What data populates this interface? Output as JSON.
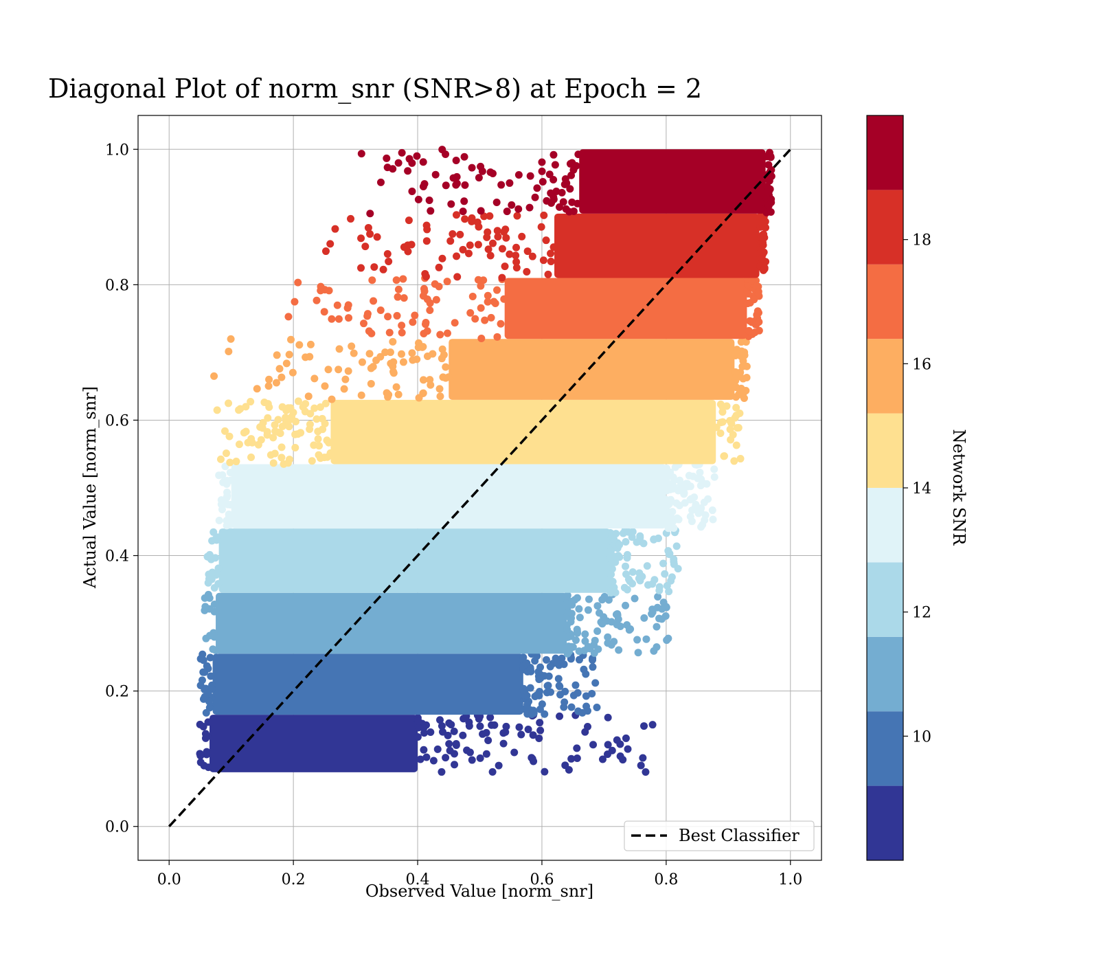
{
  "chart_data": {
    "type": "scatter",
    "title": "Diagonal Plot of norm_snr (SNR>8) at Epoch = 2",
    "xlabel": "Observed Value [norm_snr]",
    "ylabel": "Actual Value [norm_snr]",
    "xlim": [
      -0.05,
      1.05
    ],
    "ylim": [
      -0.05,
      1.05
    ],
    "xticks": [
      0.0,
      0.2,
      0.4,
      0.6,
      0.8,
      1.0
    ],
    "yticks": [
      0.0,
      0.2,
      0.4,
      0.6,
      0.8,
      1.0
    ],
    "xtick_labels": [
      "0.0",
      "0.2",
      "0.4",
      "0.6",
      "0.8",
      "1.0"
    ],
    "ytick_labels": [
      "0.0",
      "0.2",
      "0.4",
      "0.6",
      "0.8",
      "1.0"
    ],
    "grid": true,
    "legend": {
      "position": "bottom-right",
      "entries": [
        {
          "label": "Best Classifier",
          "style": "dashed",
          "color": "#000000"
        }
      ]
    },
    "reference_line": {
      "name": "Best Classifier",
      "x": [
        0.0,
        1.0
      ],
      "y": [
        0.0,
        1.0
      ]
    },
    "colorbar": {
      "label": "Network SNR",
      "range": [
        8,
        20
      ],
      "ticks": [
        10,
        12,
        14,
        16,
        18
      ],
      "tick_labels": [
        "10",
        "12",
        "14",
        "16",
        "18"
      ],
      "colormap": "RdYlBu_r (10 discrete levels)",
      "levels": [
        "#313695",
        "#4575b4",
        "#74add1",
        "#abd9e9",
        "#e0f3f8",
        "#fee090",
        "#fdae61",
        "#f46d43",
        "#d73027",
        "#a50026"
      ]
    },
    "bands": [
      {
        "snr_range": [
          8.0,
          9.2
        ],
        "y_range": [
          0.08,
          0.165
        ],
        "x_core": [
          0.065,
          0.4
        ],
        "x_tail": 0.78
      },
      {
        "snr_range": [
          9.2,
          10.4
        ],
        "y_range": [
          0.165,
          0.255
        ],
        "x_core": [
          0.07,
          0.57
        ],
        "x_tail": 0.69
      },
      {
        "snr_range": [
          10.4,
          11.6
        ],
        "y_range": [
          0.255,
          0.345
        ],
        "x_core": [
          0.075,
          0.64
        ],
        "x_tail": 0.81
      },
      {
        "snr_range": [
          11.6,
          12.8
        ],
        "y_range": [
          0.345,
          0.44
        ],
        "x_core": [
          0.08,
          0.71
        ],
        "x_tail": 0.82
      },
      {
        "snr_range": [
          12.8,
          14.0
        ],
        "y_range": [
          0.44,
          0.535
        ],
        "x_core": [
          0.1,
          0.8
        ],
        "x_tail": 0.88
      },
      {
        "snr_range": [
          14.0,
          15.2
        ],
        "y_range": [
          0.535,
          0.63
        ],
        "x_core": [
          0.26,
          0.88
        ],
        "x_tail": 0.92
      },
      {
        "snr_range": [
          15.2,
          16.4
        ],
        "y_range": [
          0.63,
          0.72
        ],
        "x_core": [
          0.45,
          0.91
        ],
        "x_tail": 0.93
      },
      {
        "snr_range": [
          16.4,
          17.6
        ],
        "y_range": [
          0.72,
          0.81
        ],
        "x_core": [
          0.54,
          0.93
        ],
        "x_tail": 0.95
      },
      {
        "snr_range": [
          17.6,
          18.8
        ],
        "y_range": [
          0.81,
          0.905
        ],
        "x_core": [
          0.62,
          0.95
        ],
        "x_tail": 0.96
      },
      {
        "snr_range": [
          18.8,
          20.0
        ],
        "y_range": [
          0.905,
          1.0
        ],
        "x_core": [
          0.66,
          0.96
        ],
        "x_tail": 0.97
      }
    ]
  }
}
